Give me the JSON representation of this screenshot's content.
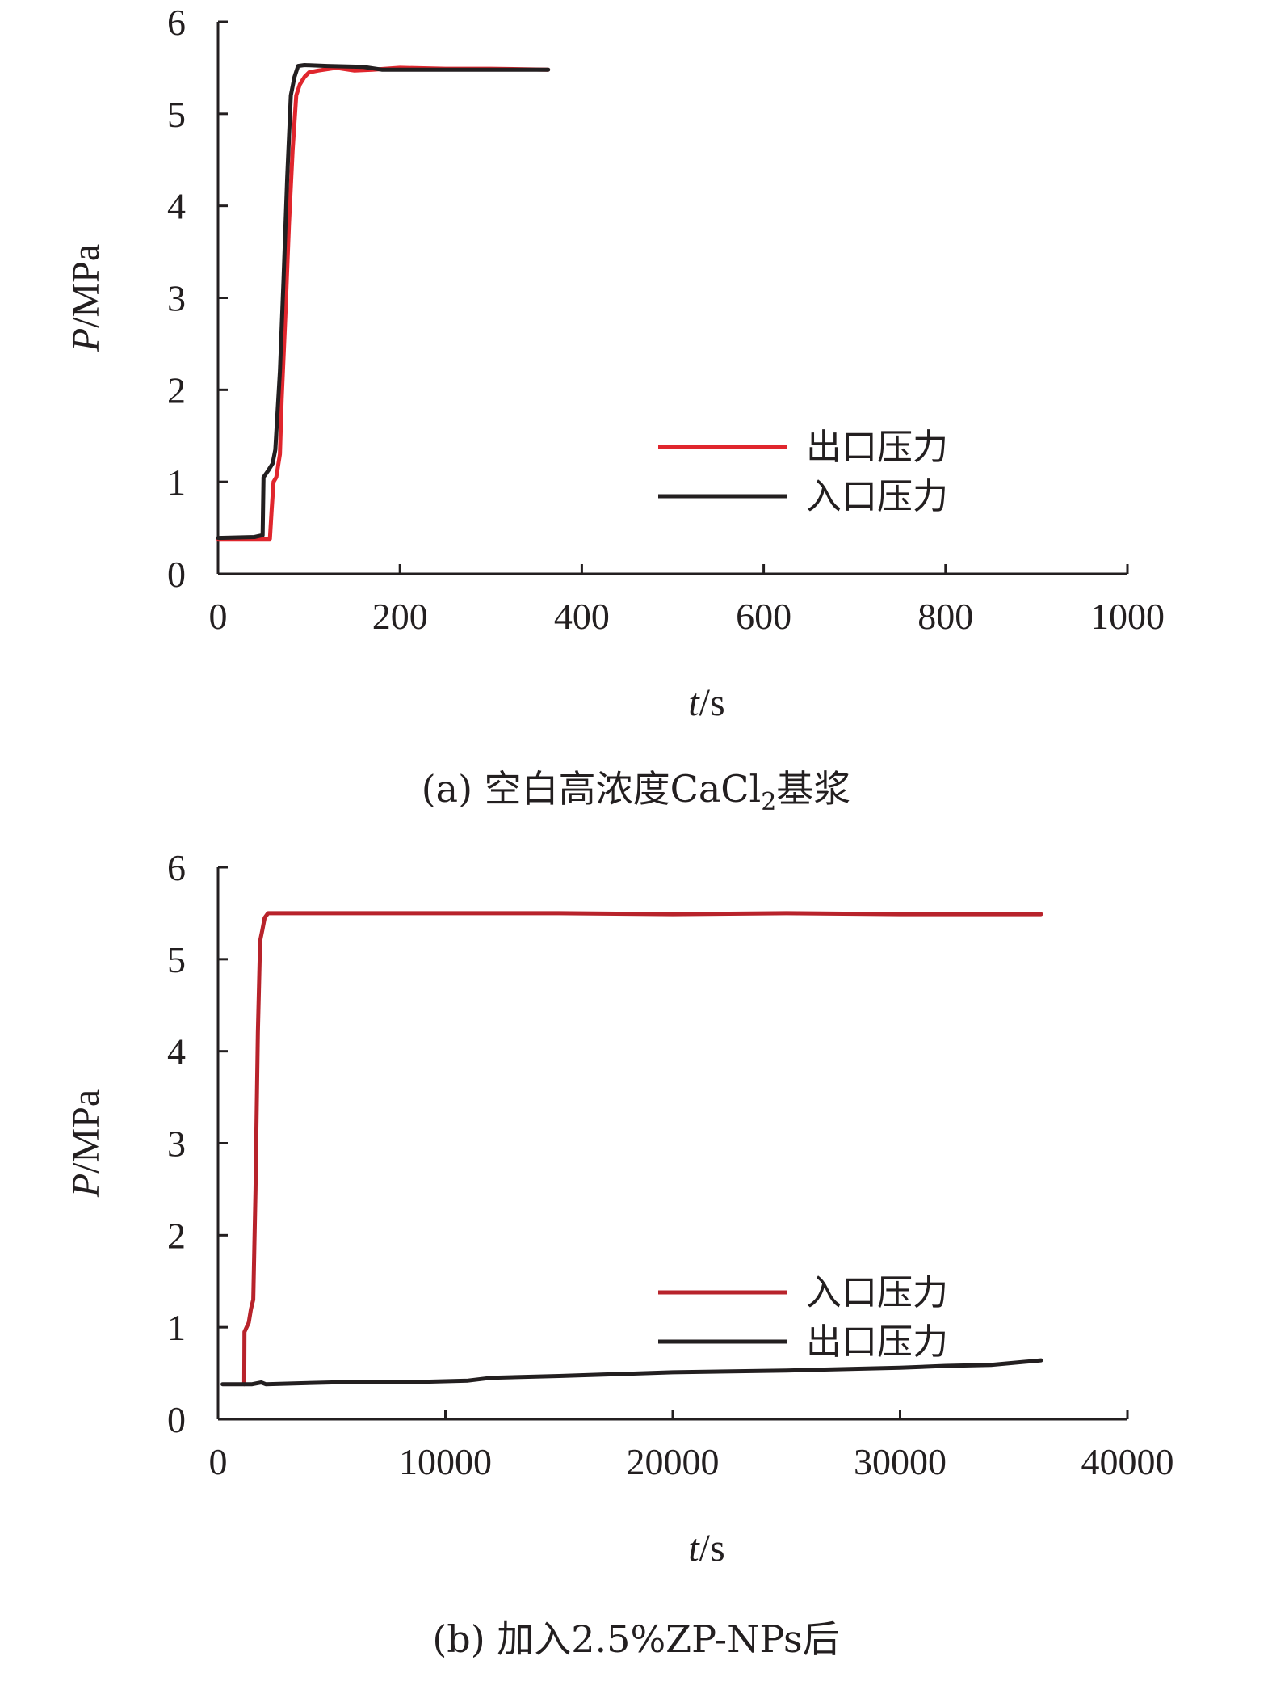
{
  "chart_data": [
    {
      "id": "a",
      "type": "line",
      "caption": {
        "prefix": "(a) 空白高浓度CaCl",
        "subscript": "2",
        "suffix": "基浆"
      },
      "ylabel": "P",
      "ylabel_unit": "/MPa",
      "xlabel": "t",
      "xlabel_unit": "/s",
      "xlim": [
        0,
        1000
      ],
      "ylim": [
        0,
        6
      ],
      "xticks": [
        0,
        200,
        400,
        600,
        800,
        1000
      ],
      "yticks": [
        0,
        1,
        2,
        3,
        4,
        5,
        6
      ],
      "legend_position": "right-middle",
      "series": [
        {
          "name": "出口压力",
          "color": "#e0262d",
          "points": [
            [
              0,
              0.38
            ],
            [
              55,
              0.38
            ],
            [
              57,
              0.38
            ],
            [
              59,
              0.7
            ],
            [
              61,
              1.0
            ],
            [
              64,
              1.05
            ],
            [
              68,
              1.3
            ],
            [
              70,
              1.9
            ],
            [
              74,
              2.8
            ],
            [
              78,
              3.8
            ],
            [
              82,
              4.6
            ],
            [
              86,
              5.2
            ],
            [
              90,
              5.32
            ],
            [
              95,
              5.4
            ],
            [
              100,
              5.45
            ],
            [
              110,
              5.47
            ],
            [
              130,
              5.5
            ],
            [
              150,
              5.47
            ],
            [
              170,
              5.48
            ],
            [
              200,
              5.5
            ],
            [
              250,
              5.49
            ],
            [
              300,
              5.49
            ],
            [
              363,
              5.48
            ]
          ]
        },
        {
          "name": "入口压力",
          "color": "#231f20",
          "points": [
            [
              0,
              0.39
            ],
            [
              40,
              0.4
            ],
            [
              49,
              0.42
            ],
            [
              50,
              1.05
            ],
            [
              55,
              1.12
            ],
            [
              60,
              1.2
            ],
            [
              63,
              1.35
            ],
            [
              68,
              2.2
            ],
            [
              72,
              3.2
            ],
            [
              76,
              4.3
            ],
            [
              80,
              5.2
            ],
            [
              84,
              5.4
            ],
            [
              88,
              5.52
            ],
            [
              95,
              5.53
            ],
            [
              120,
              5.52
            ],
            [
              160,
              5.51
            ],
            [
              180,
              5.48
            ],
            [
              200,
              5.48
            ],
            [
              250,
              5.48
            ],
            [
              300,
              5.48
            ],
            [
              363,
              5.48
            ]
          ]
        }
      ]
    },
    {
      "id": "b",
      "type": "line",
      "caption": {
        "prefix": "(b) 加入2.5%ZP-NPs后",
        "subscript": "",
        "suffix": ""
      },
      "ylabel": "P",
      "ylabel_unit": "/MPa",
      "xlabel": "t",
      "xlabel_unit": "/s",
      "xlim": [
        0,
        40000
      ],
      "ylim": [
        0,
        6
      ],
      "xticks": [
        0,
        10000,
        20000,
        30000,
        40000
      ],
      "yticks": [
        0,
        1,
        2,
        3,
        4,
        5,
        6
      ],
      "legend_position": "right-middle",
      "series": [
        {
          "name": "入口压力",
          "color": "#b8232b",
          "points": [
            [
              1150,
              0.38
            ],
            [
              1160,
              0.95
            ],
            [
              1350,
              1.05
            ],
            [
              1450,
              1.2
            ],
            [
              1550,
              1.3
            ],
            [
              1650,
              2.5
            ],
            [
              1750,
              4.2
            ],
            [
              1850,
              5.2
            ],
            [
              1950,
              5.32
            ],
            [
              2050,
              5.45
            ],
            [
              2200,
              5.5
            ],
            [
              5000,
              5.5
            ],
            [
              10000,
              5.5
            ],
            [
              15000,
              5.5
            ],
            [
              20000,
              5.49
            ],
            [
              25000,
              5.5
            ],
            [
              30000,
              5.49
            ],
            [
              36200,
              5.49
            ]
          ]
        },
        {
          "name": "出口压力",
          "color": "#231f20",
          "points": [
            [
              200,
              0.38
            ],
            [
              1500,
              0.38
            ],
            [
              1900,
              0.4
            ],
            [
              2100,
              0.38
            ],
            [
              3500,
              0.39
            ],
            [
              5000,
              0.4
            ],
            [
              8000,
              0.4
            ],
            [
              11000,
              0.42
            ],
            [
              12000,
              0.45
            ],
            [
              15000,
              0.47
            ],
            [
              20000,
              0.51
            ],
            [
              25000,
              0.53
            ],
            [
              30000,
              0.56
            ],
            [
              32000,
              0.58
            ],
            [
              34000,
              0.59
            ],
            [
              36200,
              0.64
            ]
          ]
        }
      ]
    }
  ]
}
